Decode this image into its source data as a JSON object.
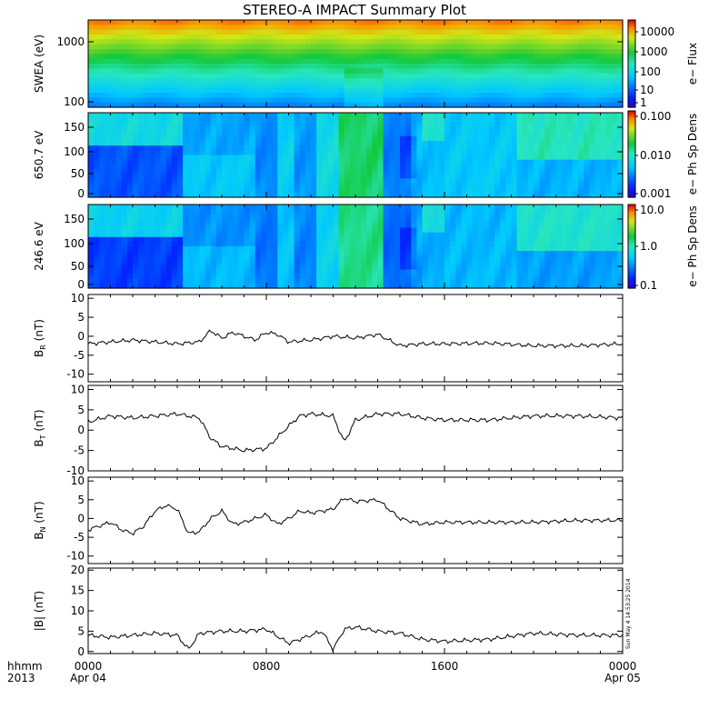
{
  "title": "STEREO-A IMPACT Summary Plot",
  "time_axis": {
    "row1_label": "hhmm",
    "row2_label": "2013",
    "ticks": [
      {
        "hour": 0,
        "time": "0000",
        "date": "Apr 04"
      },
      {
        "hour": 8,
        "time": "0800",
        "date": ""
      },
      {
        "hour": 16,
        "time": "1600",
        "date": ""
      },
      {
        "hour": 24,
        "time": "0000",
        "date": "Apr 05"
      }
    ]
  },
  "timestamp": "Sun May  4 14:53:25 2014",
  "colors": {
    "axis": "#000000",
    "line": "#000000"
  },
  "spectrograms": [
    {
      "id": "swea",
      "ylabel": "SWEA (eV)",
      "yticks": [
        "1000",
        "100"
      ],
      "colorbar_label": "e− Flux",
      "colorbar_ticks": [
        "10000",
        "1000",
        "100",
        "10",
        "1"
      ]
    },
    {
      "id": "pad650",
      "ylabel": "650.7 eV",
      "yticks": [
        "150",
        "100",
        "50",
        "0"
      ],
      "colorbar_label": "e− Ph Sp Dens",
      "colorbar_ticks": [
        "0.100",
        "0.010",
        "0.001"
      ]
    },
    {
      "id": "pad246",
      "ylabel": "246.6 eV",
      "yticks": [
        "150",
        "100",
        "50",
        "0"
      ],
      "colorbar_label": "e− Ph Sp Dens",
      "colorbar_ticks": [
        "10.0",
        "1.0",
        "0.1"
      ]
    }
  ],
  "chart_data": [
    {
      "type": "line",
      "id": "br",
      "ylabel": "B_R (nT)",
      "ylabel_main": "B",
      "ylabel_sub": "R",
      "ylabel_unit": " (nT)",
      "ylim": [
        -12,
        11
      ],
      "yticks": [
        10,
        5,
        0,
        -5,
        -10
      ],
      "x": [
        0,
        1,
        2,
        3,
        4,
        5,
        5.5,
        6,
        6.5,
        7,
        7.5,
        8,
        8.5,
        9,
        10,
        11,
        12,
        13,
        14,
        15,
        16,
        18,
        20,
        22,
        24
      ],
      "values": [
        -2,
        -1.5,
        -1,
        -1.5,
        -2,
        -1.5,
        1.5,
        -0.5,
        1,
        0,
        -1,
        1,
        0.5,
        -1.5,
        -1,
        0,
        -0.5,
        0.5,
        -2.5,
        -2,
        -2,
        -1.8,
        -2.5,
        -2.5,
        -2
      ]
    },
    {
      "type": "line",
      "id": "bt",
      "ylabel": "B_T (nT)",
      "ylabel_main": "B",
      "ylabel_sub": "T",
      "ylabel_unit": " (nT)",
      "ylim": [
        -10,
        11
      ],
      "yticks": [
        10,
        5,
        0,
        -5,
        -10
      ],
      "x": [
        0,
        1,
        2,
        3,
        4,
        5,
        5.5,
        6,
        7,
        8,
        9,
        9.5,
        10,
        11,
        11.5,
        12,
        13,
        14,
        15,
        16,
        18,
        20,
        22,
        24
      ],
      "values": [
        2,
        3.5,
        3,
        3.5,
        4,
        3,
        -2,
        -4,
        -5,
        -4.5,
        1,
        3.5,
        4,
        3.5,
        -3,
        2.5,
        4,
        4,
        3,
        2.5,
        2.5,
        3.5,
        3.5,
        3
      ]
    },
    {
      "type": "line",
      "id": "bn",
      "ylabel": "B_N (nT)",
      "ylabel_main": "B",
      "ylabel_sub": "N",
      "ylabel_unit": " (nT)",
      "ylim": [
        -12,
        11
      ],
      "yticks": [
        10,
        5,
        0,
        -5,
        -10
      ],
      "x": [
        0,
        1,
        1.5,
        2,
        2.5,
        3,
        3.5,
        4,
        4.5,
        5,
        5.5,
        6,
        6.5,
        7,
        8,
        8.5,
        9,
        9.5,
        10,
        11,
        11.5,
        12,
        13,
        14,
        15,
        16,
        18,
        20,
        22,
        24
      ],
      "values": [
        -3,
        -1,
        -3,
        -4,
        -2,
        2,
        3.5,
        2.5,
        -4,
        -3.5,
        0,
        2,
        -1.5,
        -1,
        1,
        -1.5,
        0,
        2,
        1.5,
        2.5,
        5.5,
        4.5,
        5,
        0,
        -1.5,
        -1,
        -1,
        -1,
        -0.5,
        -0.5
      ]
    },
    {
      "type": "line",
      "id": "bmag",
      "ylabel": "|B| (nT)",
      "ylabel_main": "|B|",
      "ylabel_sub": "",
      "ylabel_unit": " (nT)",
      "ylim": [
        -0.5,
        20.5
      ],
      "yticks": [
        20,
        15,
        10,
        5,
        0
      ],
      "x": [
        0,
        1,
        2,
        3,
        4,
        4.5,
        5,
        6,
        7,
        8,
        9,
        10,
        10.5,
        11,
        11.5,
        12,
        13,
        14,
        15,
        16,
        18,
        20,
        22,
        24
      ],
      "values": [
        4,
        3.5,
        4,
        4.5,
        4,
        0.5,
        4.5,
        5,
        5,
        5.5,
        2,
        4,
        5,
        0.5,
        5.5,
        6,
        5,
        4.5,
        3,
        2.5,
        3,
        4.5,
        4,
        4
      ]
    }
  ]
}
